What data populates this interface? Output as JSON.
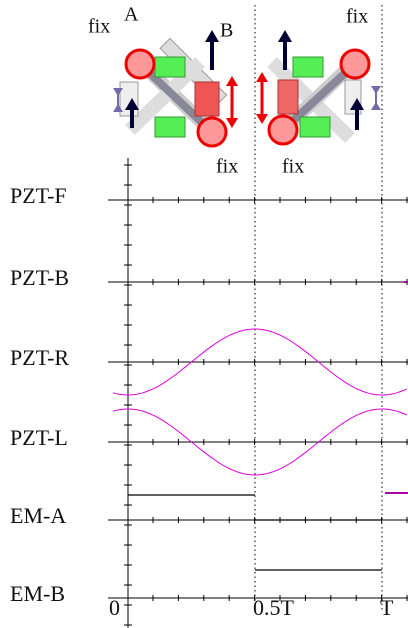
{
  "annotations": {
    "fix_left": "fix",
    "point_a": "A",
    "point_b": "B",
    "fix_bottom_left": "fix",
    "fix_bottom_right": "fix",
    "fix_top_right": "fix"
  },
  "signals": [
    "PZT-F",
    "PZT-B",
    "PZT-R",
    "PZT-L",
    "EM-A",
    "EM-B"
  ],
  "time_labels": [
    "0",
    "0.5T",
    "T"
  ]
}
